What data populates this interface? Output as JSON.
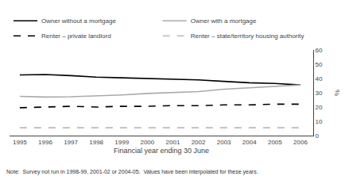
{
  "chart_data": {
    "type": "line",
    "xlabel": "Financial year ending 30 June",
    "ylabel": "%",
    "x": [
      1995,
      1996,
      1997,
      1998,
      1999,
      2000,
      2001,
      2002,
      2003,
      2004,
      2005,
      2006
    ],
    "series": [
      {
        "name": "Owner without a mortgage",
        "color": "#000000",
        "line_style": "solid",
        "values": [
          42.5,
          42.8,
          42.0,
          41.0,
          40.5,
          40.0,
          39.5,
          39.0,
          38.0,
          37.0,
          36.5,
          35.5
        ]
      },
      {
        "name": "Owner with a mortgage",
        "color": "#aaaaaa",
        "line_style": "solid",
        "values": [
          27.5,
          27.0,
          27.2,
          27.8,
          28.5,
          29.5,
          30.0,
          30.8,
          32.5,
          33.5,
          34.5,
          35.5
        ]
      },
      {
        "name": "Renter – private landlord",
        "color": "#000000",
        "line_style": "dashed",
        "values": [
          19.5,
          20.0,
          20.5,
          20.0,
          20.5,
          20.5,
          21.0,
          21.0,
          21.5,
          21.5,
          22.0,
          22.0
        ]
      },
      {
        "name": "Renter – state/territory housing authority",
        "color": "#bbbbbb",
        "line_style": "dashed",
        "values": [
          5.5,
          5.5,
          5.5,
          5.5,
          5.5,
          5.5,
          5.5,
          5.5,
          5.5,
          5.5,
          5.5,
          5.5
        ]
      }
    ],
    "xlim": [
      1994.6,
      2006.5
    ],
    "xticks": [
      1995,
      1996,
      1997,
      1998,
      1999,
      2000,
      2001,
      2002,
      2003,
      2004,
      2005,
      2006
    ],
    "ylim": [
      0,
      60
    ],
    "yticks": [
      0,
      10,
      20,
      30,
      40,
      50,
      60
    ],
    "grid": false,
    "legend": "top left",
    "annotations": [
      "Note:  Survey not run in 1998-99, 2001-02 or 2004-05.  Values have been interpolated for these years."
    ]
  }
}
